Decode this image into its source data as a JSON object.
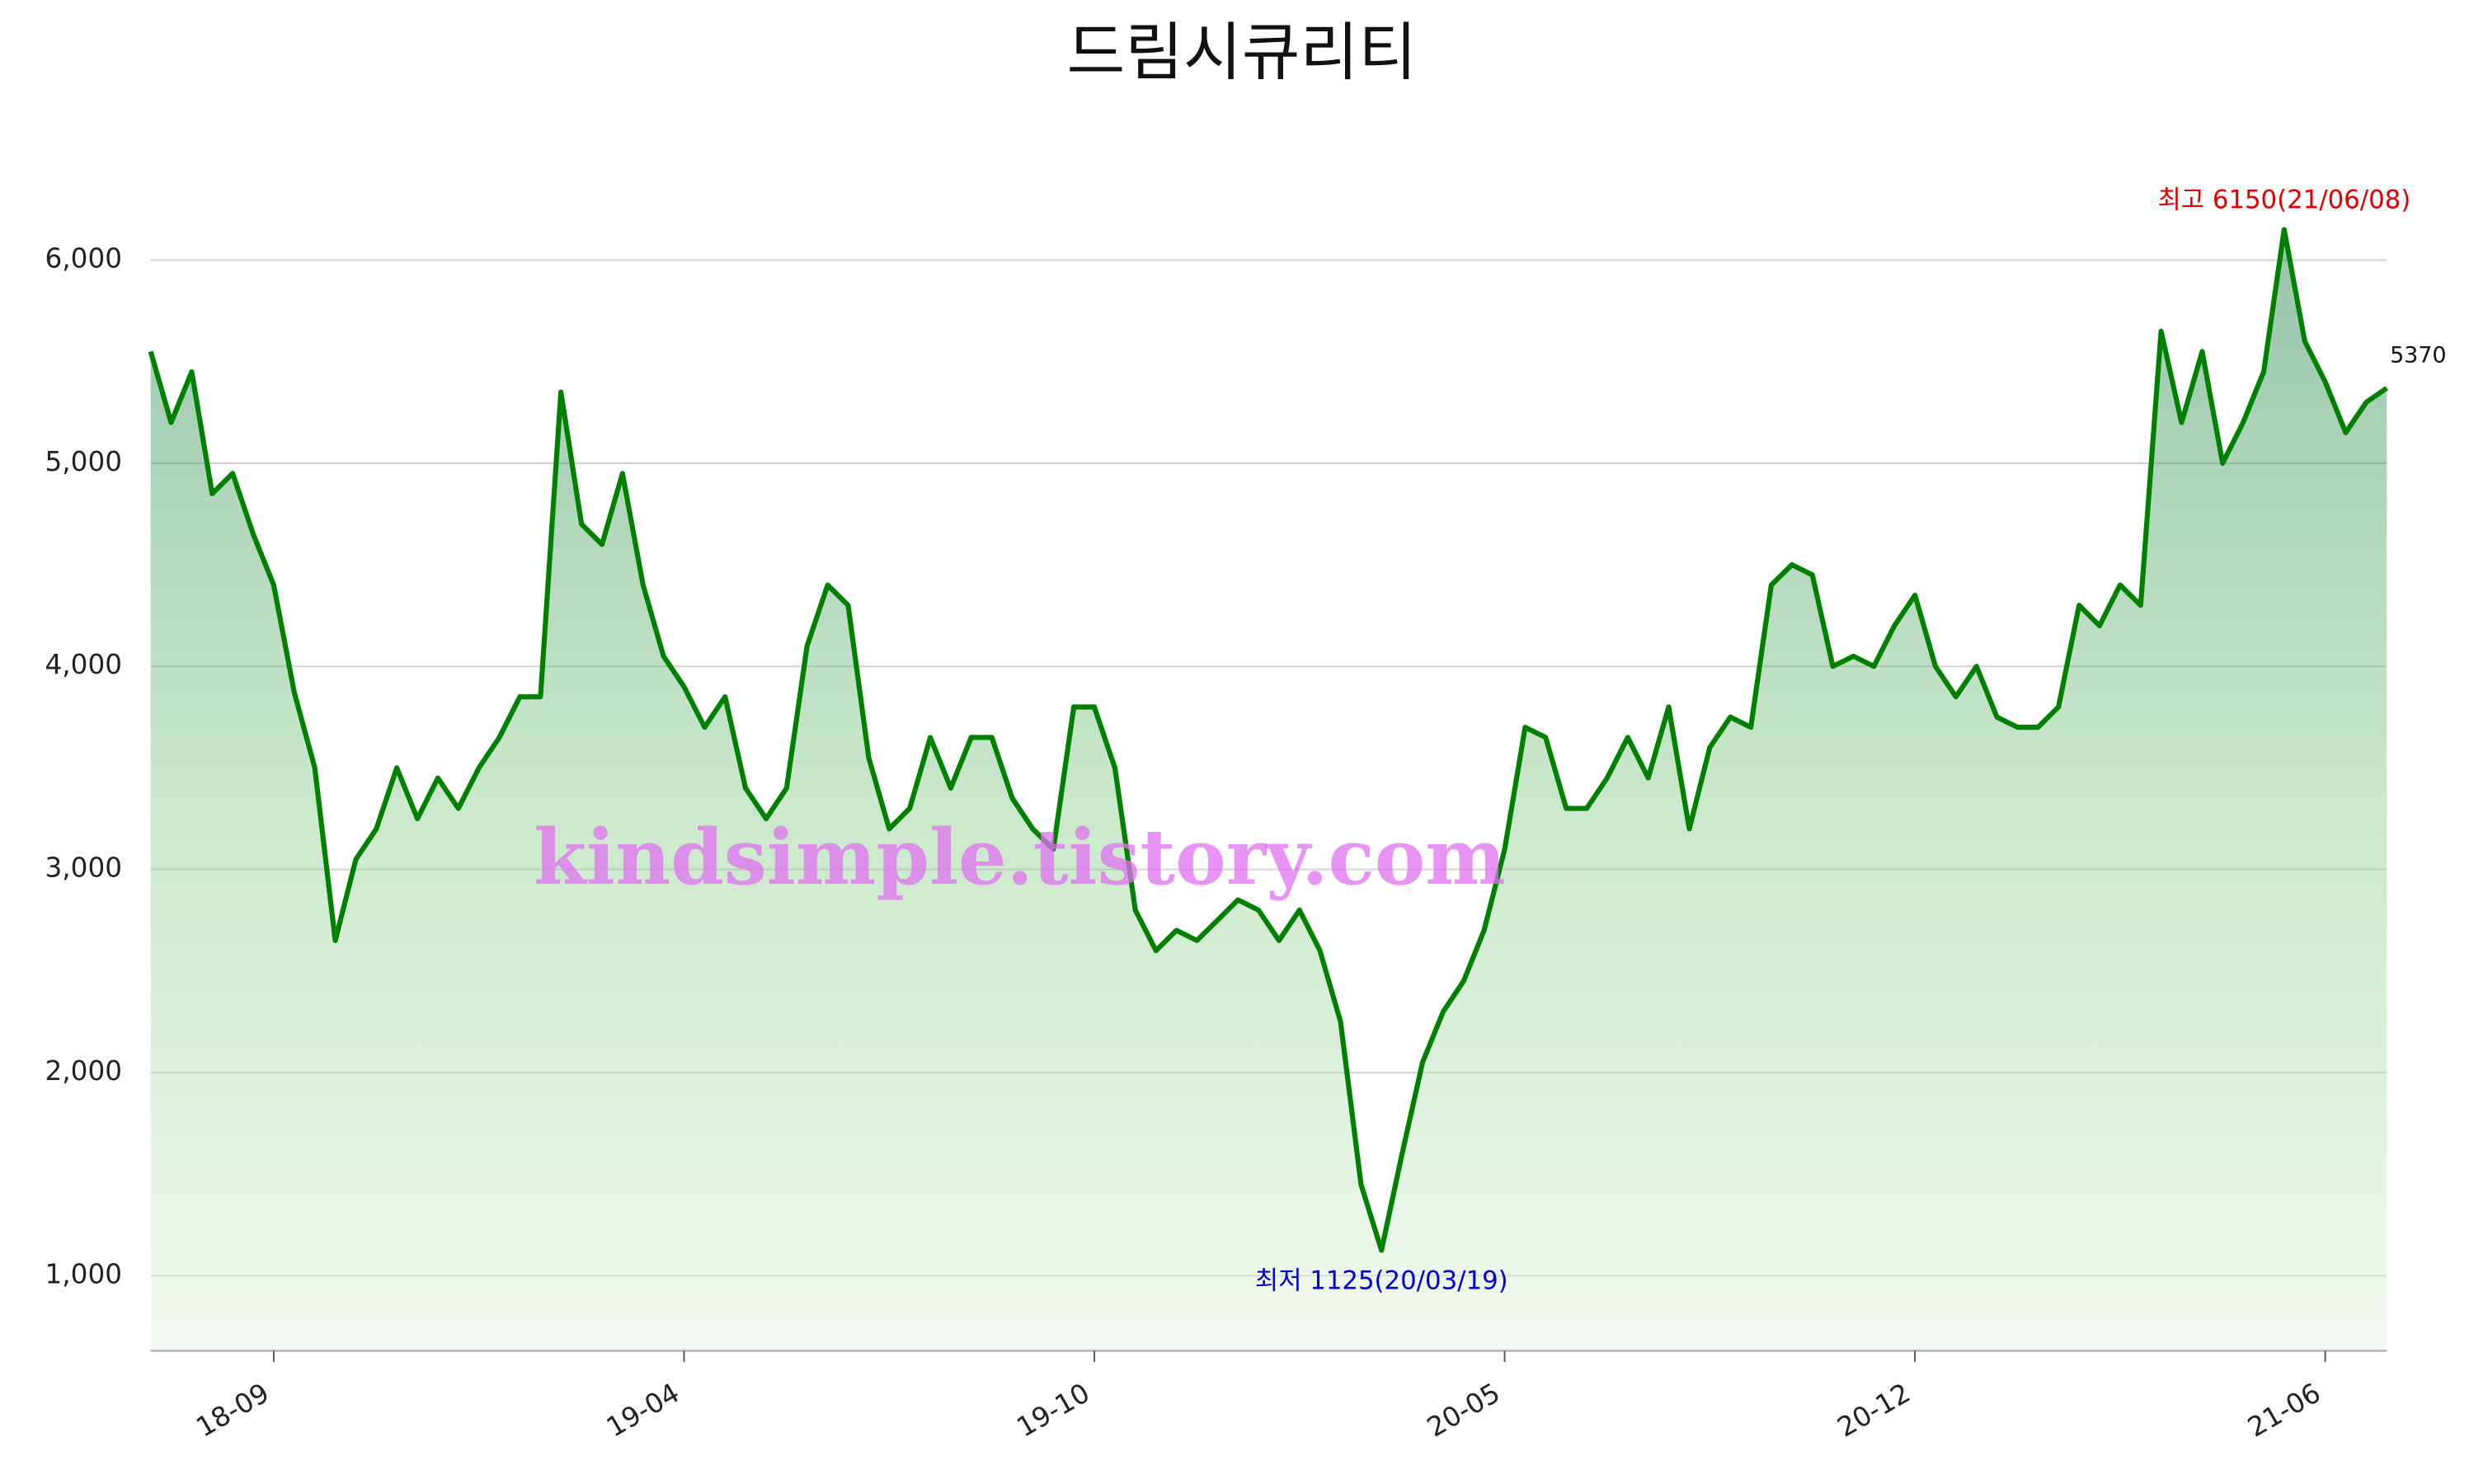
{
  "chart_data": {
    "type": "line",
    "title": "드림시큐리티",
    "watermark": "kindsimple.tistory.com",
    "annotations": {
      "max": "최고 6150(21/06/08)",
      "min": "최저 1125(20/03/19)",
      "last": "5370"
    },
    "color": "#008000",
    "categories": [
      null,
      null,
      null,
      null,
      null,
      null,
      "18-09",
      null,
      null,
      null,
      null,
      null,
      null,
      null,
      null,
      null,
      null,
      null,
      null,
      null,
      null,
      null,
      null,
      null,
      null,
      null,
      "19-04",
      null,
      null,
      null,
      null,
      null,
      null,
      null,
      null,
      null,
      null,
      null,
      null,
      null,
      null,
      null,
      null,
      null,
      null,
      null,
      "19-10",
      null,
      null,
      null,
      null,
      null,
      null,
      null,
      null,
      null,
      null,
      null,
      null,
      null,
      null,
      null,
      null,
      null,
      null,
      null,
      "20-05",
      null,
      null,
      null,
      null,
      null,
      null,
      null,
      null,
      null,
      null,
      null,
      null,
      null,
      null,
      null,
      null,
      null,
      null,
      null,
      "20-12",
      null,
      null,
      null,
      null,
      null,
      null,
      null,
      null,
      null,
      null,
      null,
      null,
      null,
      null,
      null,
      null,
      null,
      null,
      null,
      "21-06",
      null,
      null,
      null
    ],
    "values": [
      5550,
      5200,
      5450,
      4850,
      4950,
      4650,
      4400,
      3870,
      3500,
      2650,
      3050,
      3200,
      3500,
      3250,
      3450,
      3300,
      3500,
      3650,
      3850,
      3850,
      5350,
      4700,
      4600,
      4950,
      4400,
      4050,
      3900,
      3700,
      3850,
      3400,
      3250,
      3400,
      4100,
      4400,
      4300,
      3550,
      3200,
      3300,
      3650,
      3400,
      3650,
      3650,
      3350,
      3200,
      3100,
      3800,
      3800,
      3500,
      2800,
      2600,
      2700,
      2650,
      2750,
      2850,
      2800,
      2650,
      2800,
      2600,
      2250,
      1450,
      1125,
      1600,
      2050,
      2300,
      2450,
      2700,
      3100,
      3700,
      3650,
      3300,
      3300,
      3450,
      3650,
      3450,
      3800,
      3200,
      3600,
      3750,
      3700,
      4400,
      4500,
      4450,
      4000,
      4050,
      4000,
      4200,
      4350,
      4000,
      3850,
      4000,
      3750,
      3700,
      3700,
      3800,
      4300,
      4200,
      4400,
      4300,
      5650,
      5200,
      5550,
      5000,
      5200,
      5450,
      6150,
      5600,
      5400,
      5150,
      5300,
      5370
    ],
    "ylim": [
      630,
      6500
    ],
    "yticks": [
      {
        "value": 1000,
        "label": "1,000"
      },
      {
        "value": 2000,
        "label": "2,000"
      },
      {
        "value": 3000,
        "label": "3,000"
      },
      {
        "value": 4000,
        "label": "4,000"
      },
      {
        "value": 5000,
        "label": "5,000"
      },
      {
        "value": 6000,
        "label": "6,000"
      }
    ],
    "grid": true
  }
}
